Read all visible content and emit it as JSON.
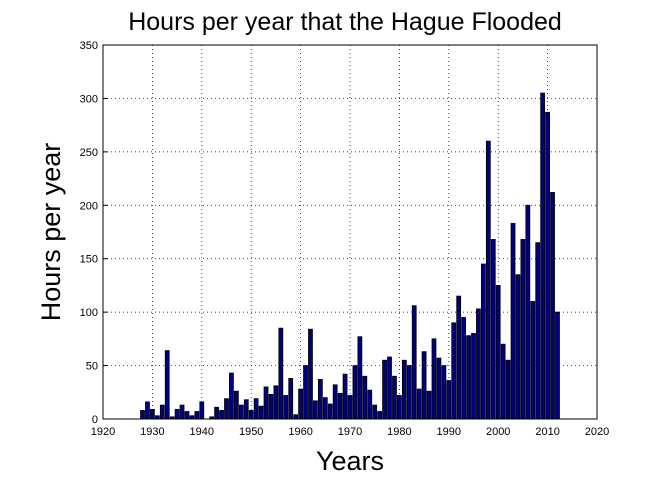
{
  "chart_data": {
    "type": "bar",
    "title": "Hours per year that the Hague Flooded",
    "xlabel": "Years",
    "ylabel": "Hours per year",
    "color": "#000080",
    "edgecolor": "#000000",
    "grid": true,
    "xlim": [
      1920,
      2020
    ],
    "xticks": [
      1920,
      1930,
      1940,
      1950,
      1960,
      1970,
      1980,
      1990,
      2000,
      2010,
      2020
    ],
    "ylim": [
      0,
      350
    ],
    "yticks": [
      0,
      50,
      100,
      150,
      200,
      250,
      300,
      350
    ],
    "x": [
      1928,
      1929,
      1930,
      1931,
      1932,
      1933,
      1934,
      1935,
      1936,
      1937,
      1938,
      1939,
      1940,
      1941,
      1942,
      1943,
      1944,
      1945,
      1946,
      1947,
      1948,
      1949,
      1950,
      1951,
      1952,
      1953,
      1954,
      1955,
      1956,
      1957,
      1958,
      1959,
      1960,
      1961,
      1962,
      1963,
      1964,
      1965,
      1966,
      1967,
      1968,
      1969,
      1970,
      1971,
      1972,
      1973,
      1974,
      1975,
      1976,
      1977,
      1978,
      1979,
      1980,
      1981,
      1982,
      1983,
      1984,
      1985,
      1986,
      1987,
      1988,
      1989,
      1990,
      1991,
      1992,
      1993,
      1994,
      1995,
      1996,
      1997,
      1998,
      1999,
      2000,
      2001,
      2002,
      2003,
      2004,
      2005,
      2006,
      2007,
      2008,
      2009,
      2010,
      2011,
      2012
    ],
    "values": [
      8,
      16,
      9,
      3,
      13,
      64,
      2,
      9,
      13,
      7,
      3,
      7,
      16,
      0,
      2,
      11,
      8,
      19,
      43,
      26,
      13,
      18,
      8,
      19,
      12,
      30,
      23,
      31,
      85,
      22,
      38,
      4,
      28,
      50,
      84,
      17,
      37,
      20,
      14,
      32,
      24,
      42,
      22,
      50,
      77,
      40,
      27,
      13,
      7,
      55,
      58,
      40,
      22,
      55,
      50,
      106,
      28,
      63,
      26,
      75,
      57,
      50,
      36,
      90,
      115,
      95,
      78,
      80,
      103,
      145,
      260,
      168,
      125,
      70,
      55,
      183,
      135,
      168,
      200,
      110,
      165,
      305,
      287,
      212,
      100
    ]
  }
}
